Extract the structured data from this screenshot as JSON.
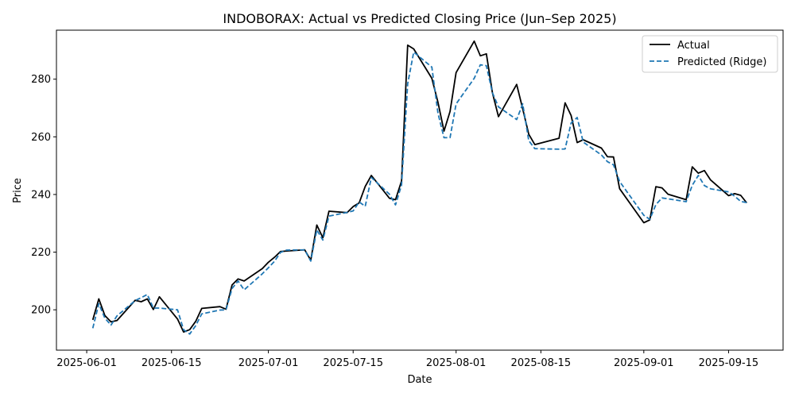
{
  "chart_data": {
    "type": "line",
    "title": "INDOBORAX: Actual vs Predicted Closing Price (Jun–Sep 2025)",
    "xlabel": "Date",
    "ylabel": "Price",
    "xlim": [
      "2025-05-27",
      "2025-09-24"
    ],
    "ylim": [
      186,
      297
    ],
    "x_ticks": [
      "2025-06-01",
      "2025-06-15",
      "2025-07-01",
      "2025-07-15",
      "2025-08-01",
      "2025-08-15",
      "2025-09-01",
      "2025-09-15"
    ],
    "y_ticks": [
      200,
      220,
      240,
      260,
      280
    ],
    "grid": false,
    "legend_position": "top-right",
    "x": [
      "2025-06-02",
      "2025-06-03",
      "2025-06-04",
      "2025-06-05",
      "2025-06-06",
      "2025-06-09",
      "2025-06-10",
      "2025-06-11",
      "2025-06-12",
      "2025-06-13",
      "2025-06-16",
      "2025-06-17",
      "2025-06-18",
      "2025-06-19",
      "2025-06-20",
      "2025-06-23",
      "2025-06-24",
      "2025-06-25",
      "2025-06-26",
      "2025-06-27",
      "2025-06-30",
      "2025-07-01",
      "2025-07-02",
      "2025-07-03",
      "2025-07-04",
      "2025-07-07",
      "2025-07-08",
      "2025-07-09",
      "2025-07-10",
      "2025-07-11",
      "2025-07-14",
      "2025-07-15",
      "2025-07-16",
      "2025-07-17",
      "2025-07-18",
      "2025-07-21",
      "2025-07-22",
      "2025-07-23",
      "2025-07-24",
      "2025-07-25",
      "2025-07-28",
      "2025-07-29",
      "2025-07-30",
      "2025-07-31",
      "2025-08-01",
      "2025-08-04",
      "2025-08-05",
      "2025-08-06",
      "2025-08-07",
      "2025-08-08",
      "2025-08-11",
      "2025-08-12",
      "2025-08-13",
      "2025-08-14",
      "2025-08-18",
      "2025-08-19",
      "2025-08-20",
      "2025-08-21",
      "2025-08-22",
      "2025-08-25",
      "2025-08-26",
      "2025-08-27",
      "2025-08-28",
      "2025-09-01",
      "2025-09-02",
      "2025-09-03",
      "2025-09-04",
      "2025-09-05",
      "2025-09-08",
      "2025-09-09",
      "2025-09-10",
      "2025-09-11",
      "2025-09-12",
      "2025-09-15",
      "2025-09-16",
      "2025-09-17",
      "2025-09-18"
    ],
    "series": [
      {
        "name": "Actual",
        "color": "#000000",
        "style": "solid",
        "values": [
          196.5,
          203.8,
          198.0,
          195.8,
          196.3,
          203.3,
          202.8,
          203.8,
          200.1,
          204.5,
          196.8,
          192.3,
          193.1,
          196.0,
          200.5,
          201.1,
          200.2,
          208.6,
          210.7,
          210.0,
          214.3,
          216.5,
          218.2,
          220.2,
          220.4,
          220.8,
          217.2,
          229.4,
          225.0,
          234.2,
          233.7,
          235.8,
          237.1,
          242.8,
          246.6,
          238.7,
          238.2,
          244.7,
          291.8,
          290.5,
          280.3,
          272.0,
          262.0,
          268.8,
          282.3,
          293.2,
          288.1,
          288.8,
          275.3,
          267.0,
          278.2,
          269.7,
          260.9,
          257.3,
          259.5,
          271.8,
          267.4,
          258.0,
          259.0,
          256.1,
          253.1,
          253.0,
          242.0,
          230.2,
          231.2,
          242.7,
          242.3,
          240.1,
          238.2,
          249.6,
          247.4,
          248.3,
          245.1,
          239.6,
          240.3,
          239.7,
          237.1
        ]
      },
      {
        "name": "Predicted (Ridge)",
        "color": "#1f77b4",
        "style": "dashed",
        "values": [
          193.6,
          202.1,
          197.1,
          194.7,
          197.9,
          203.2,
          204.2,
          205.3,
          200.6,
          200.6,
          200.0,
          193.1,
          191.6,
          194.5,
          198.6,
          199.9,
          200.0,
          207.4,
          210.0,
          206.9,
          212.5,
          214.6,
          216.8,
          219.9,
          220.7,
          220.8,
          216.9,
          227.7,
          224.2,
          232.5,
          233.8,
          234.3,
          237.4,
          235.9,
          245.9,
          240.1,
          236.4,
          243.3,
          278.4,
          289.4,
          284.2,
          268.2,
          259.7,
          259.7,
          271.4,
          280.3,
          285.0,
          284.7,
          275.3,
          270.4,
          266.0,
          271.4,
          258.7,
          255.9,
          255.7,
          255.8,
          264.8,
          266.7,
          258.2,
          253.7,
          251.4,
          250.3,
          244.5,
          232.8,
          231.4,
          236.5,
          238.8,
          238.5,
          237.5,
          243.2,
          246.6,
          243.1,
          242.0,
          240.9,
          239.4,
          237.6,
          237.2
        ]
      }
    ]
  }
}
